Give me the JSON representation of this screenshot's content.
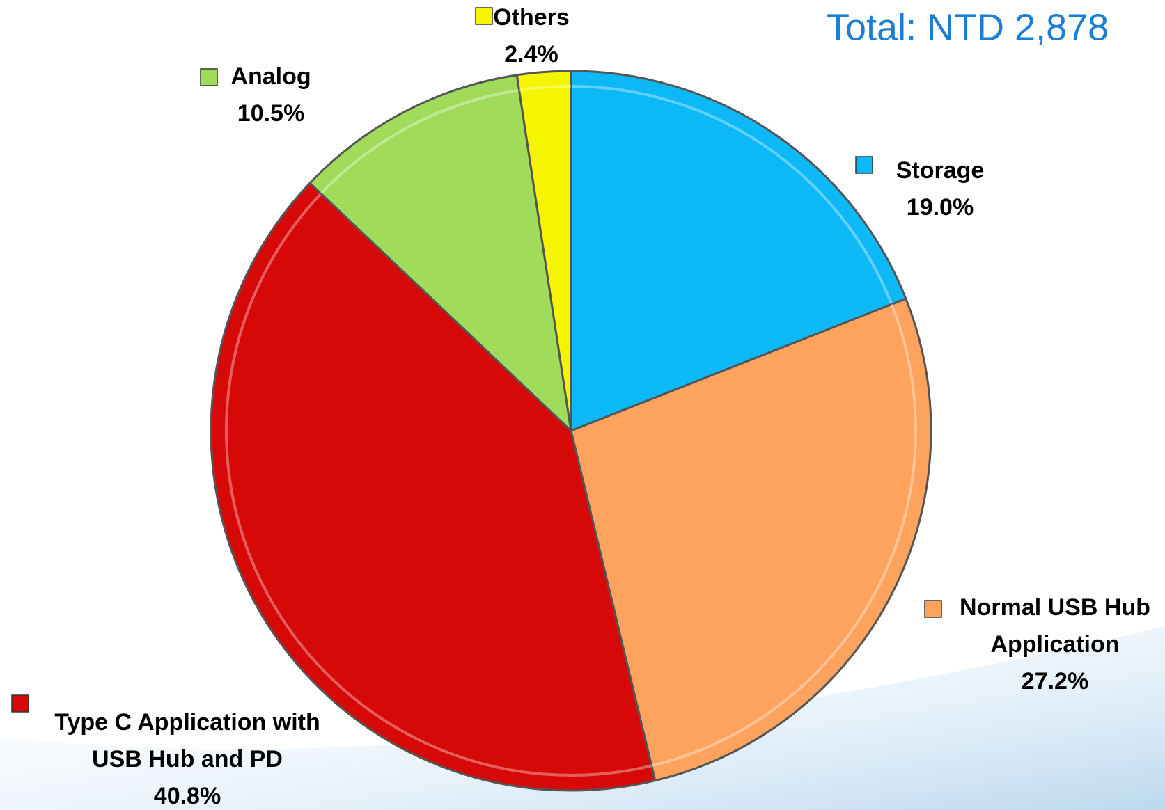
{
  "chart_data": {
    "type": "pie",
    "title": "Total: NTD 2,878",
    "categories": [
      [
        "Storage"
      ],
      [
        "Normal USB Hub",
        "Application"
      ],
      [
        "Type C Application with",
        "USB Hub and PD"
      ],
      [
        "Analog"
      ],
      [
        "Others"
      ]
    ],
    "values": [
      19.0,
      27.2,
      40.8,
      10.5,
      2.4
    ],
    "value_labels": [
      "19.0%",
      "27.2%",
      "40.8%",
      "10.5%",
      "2.4%"
    ],
    "colors": [
      "#0cb8f5",
      "#fda35e",
      "#d60808",
      "#a0dc5a",
      "#f5f500"
    ]
  }
}
